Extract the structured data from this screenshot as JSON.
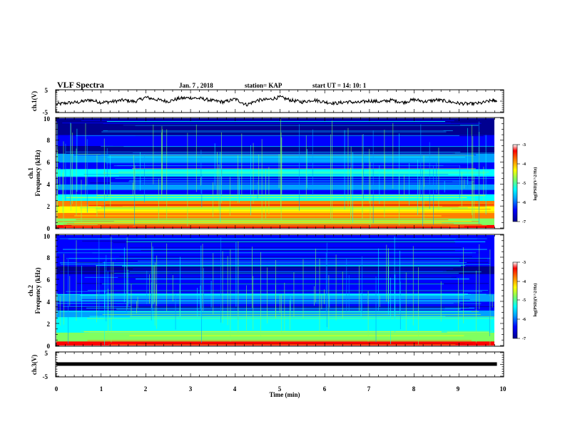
{
  "header": {
    "title": "VLF Spectra",
    "date": "Jan. 7 , 2018",
    "station": "station= KAP",
    "start": "start UT =   14: 10: 1"
  },
  "chart_data": [
    {
      "type": "line",
      "panel": "ch1-waveform",
      "ylabel": "ch.1(V)",
      "y_tick_labels": [
        "5",
        "-5"
      ],
      "ylim": [
        -5,
        5
      ],
      "x": [
        0,
        0.25,
        0.5,
        0.75,
        1,
        1.25,
        1.5,
        1.75,
        2,
        2.25,
        2.5,
        2.75,
        3,
        3.25,
        3.5,
        3.75,
        4,
        4.25,
        4.5,
        4.75,
        5,
        5.25,
        5.5,
        5.75,
        6,
        6.25,
        6.5,
        6.75,
        7,
        7.25,
        7.5,
        7.75,
        8,
        8.25,
        8.5,
        8.75,
        9,
        9.25,
        9.5,
        9.75,
        9.85
      ],
      "y": [
        -1.5,
        -0.8,
        -0.5,
        0.6,
        -0.6,
        -0.2,
        0.5,
        -0.2,
        1.8,
        0.7,
        -0.1,
        1.3,
        1.6,
        1.2,
        0.2,
        -0.4,
        1.0,
        -1.7,
        0.4,
        0.8,
        1.9,
        0.4,
        -0.4,
        0.6,
        -0.4,
        -1.0,
        -0.3,
        -0.7,
        0.2,
        -0.3,
        0.5,
        -0.6,
        0.7,
        -0.2,
        0.6,
        -0.1,
        -1.0,
        -1.3,
        -0.9,
        0.4,
        0.1
      ],
      "xlim": [
        0,
        10
      ]
    },
    {
      "type": "heatmap",
      "panel": "ch1-spectrogram",
      "ylabel": "Frequency (kHz)",
      "channel_label": "ch.1",
      "ylim": [
        0,
        10
      ],
      "xlim": [
        0,
        9.85
      ],
      "y_tick_labels": [
        "0",
        "2",
        "4",
        "6",
        "8",
        "10"
      ],
      "colorbar": {
        "label": "log(PSD)(V^2/Hz)",
        "range": [
          -7,
          -3
        ],
        "tick_labels": [
          "-3",
          "-4",
          "-5",
          "-6",
          "-7"
        ]
      },
      "bands_khz_value": [
        [
          0.0,
          0.3,
          -3.5
        ],
        [
          0.3,
          0.9,
          -5.0
        ],
        [
          0.9,
          1.4,
          -4.2
        ],
        [
          1.4,
          2.0,
          -4.4
        ],
        [
          2.0,
          2.5,
          -3.8
        ],
        [
          2.5,
          3.1,
          -5.3
        ],
        [
          3.1,
          3.5,
          -6.5
        ],
        [
          3.5,
          4.0,
          -5.8
        ],
        [
          4.0,
          4.7,
          -6.6
        ],
        [
          4.7,
          5.4,
          -5.7
        ],
        [
          5.4,
          6.0,
          -6.6
        ],
        [
          6.0,
          6.8,
          -6.2
        ],
        [
          6.8,
          7.5,
          -6.9
        ],
        [
          7.5,
          8.5,
          -6.7
        ],
        [
          8.5,
          10.0,
          -6.8
        ]
      ]
    },
    {
      "type": "heatmap",
      "panel": "ch2-spectrogram",
      "ylabel": "Frequency (kHz)",
      "channel_label": "ch.2",
      "ylim": [
        0,
        10
      ],
      "xlim": [
        0,
        9.85
      ],
      "y_tick_labels": [
        "0",
        "2",
        "4",
        "6",
        "8",
        "10"
      ],
      "colorbar": {
        "label": "log(PSD)(V^2/Hz)",
        "range": [
          -7,
          -3
        ],
        "tick_labels": [
          "-3",
          "-4",
          "-5",
          "-6",
          "-7"
        ]
      },
      "bands_khz_value": [
        [
          0.0,
          0.4,
          -3.6
        ],
        [
          0.4,
          1.2,
          -5.0
        ],
        [
          1.2,
          2.0,
          -5.3
        ],
        [
          2.0,
          2.6,
          -5.6
        ],
        [
          2.6,
          3.2,
          -6.1
        ],
        [
          3.2,
          4.0,
          -6.5
        ],
        [
          4.0,
          4.7,
          -5.9
        ],
        [
          4.7,
          5.5,
          -6.3
        ],
        [
          5.5,
          6.5,
          -6.6
        ],
        [
          6.5,
          7.2,
          -6.8
        ],
        [
          7.2,
          8.2,
          -6.6
        ],
        [
          8.2,
          10.0,
          -6.6
        ]
      ]
    },
    {
      "type": "line",
      "panel": "ch3-waveform",
      "ylabel": "ch.3(V)",
      "y_tick_labels": [
        "5",
        "-5"
      ],
      "ylim": [
        -5,
        5
      ],
      "x": [
        0,
        9.85
      ],
      "y": [
        0,
        0
      ],
      "xlim": [
        0,
        10
      ]
    }
  ],
  "xaxis": {
    "label": "Time (min)",
    "tick_labels": [
      "0",
      "1",
      "2",
      "3",
      "4",
      "5",
      "6",
      "7",
      "8",
      "9",
      "10"
    ],
    "range": [
      0,
      10
    ]
  },
  "colors": {
    "background": "#ffffff",
    "ink": "#000000",
    "colormap": [
      "#000090",
      "#0000ff",
      "#00a0ff",
      "#00ffff",
      "#80ff60",
      "#ffff00",
      "#ff8000",
      "#ff0000",
      "#d00000"
    ]
  }
}
